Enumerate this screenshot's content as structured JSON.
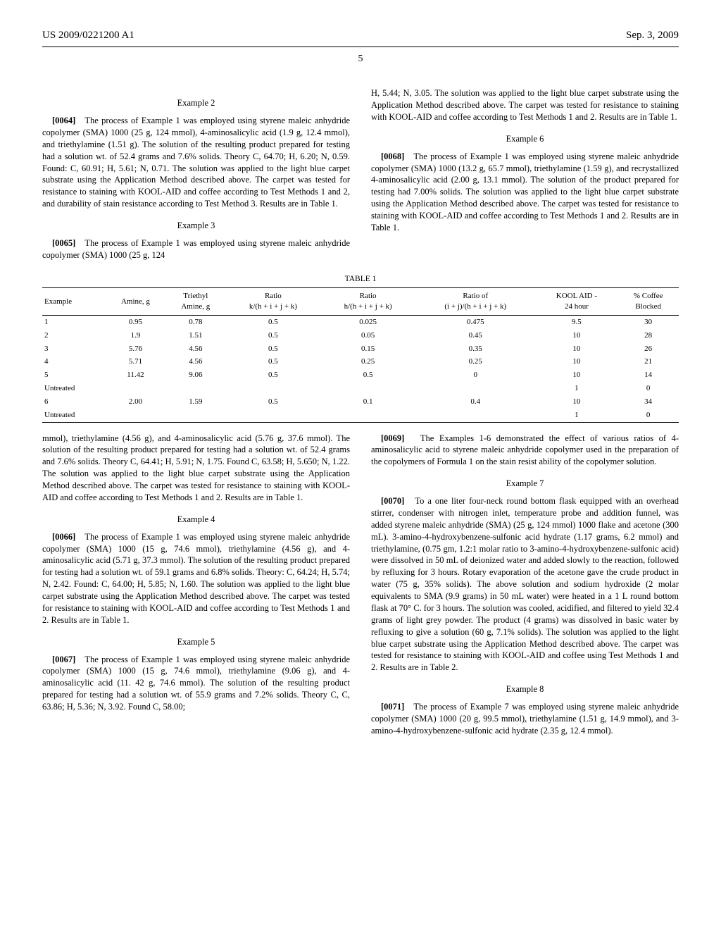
{
  "header": {
    "pub_id": "US 2009/0221200 A1",
    "pub_date": "Sep. 3, 2009",
    "page_number": "5"
  },
  "examples": {
    "ex2": {
      "title": "Example 2",
      "para_num": "[0064]",
      "text": "The process of Example 1 was employed using styrene maleic anhydride copolymer (SMA) 1000 (25 g, 124 mmol), 4-aminosalicylic acid (1.9 g, 12.4 mmol), and triethylamine (1.51 g). The solution of the resulting product prepared for testing had a solution wt. of 52.4 grams and 7.6% solids. Theory C, 64.70; H, 6.20; N, 0.59. Found: C, 60.91; H, 5.61; N, 0.71. The solution was applied to the light blue carpet substrate using the Application Method described above. The carpet was tested for resistance to staining with KOOL-AID and coffee according to Test Methods 1 and 2, and durability of stain resistance according to Test Method 3. Results are in Table 1."
    },
    "ex3": {
      "title": "Example 3",
      "para_num": "[0065]",
      "lead": "The process of Example 1 was employed using styrene maleic anhydride copolymer (SMA) 1000 (25 g, 124",
      "cont": "mmol), triethylamine (4.56 g), and 4-aminosalicylic acid (5.76 g, 37.6 mmol). The solution of the resulting product prepared for testing had a solution wt. of 52.4 grams and 7.6% solids. Theory C, 64.41; H, 5.91; N, 1.75. Found C, 63.58; H, 5.650; N, 1.22. The solution was applied to the light blue carpet substrate using the Application Method described above. The carpet was tested for resistance to staining with KOOL-AID and coffee according to Test Methods 1 and 2. Results are in Table 1."
    },
    "ex4": {
      "title": "Example 4",
      "para_num": "[0066]",
      "text": "The process of Example 1 was employed using styrene maleic anhydride copolymer (SMA) 1000 (15 g, 74.6 mmol), triethylamine (4.56 g), and 4-aminosalicylic acid (5.71 g, 37.3 mmol). The solution of the resulting product prepared for testing had a solution wt. of 59.1 grams and 6.8% solids. Theory: C, 64.24; H, 5.74; N, 2.42. Found: C, 64.00; H, 5.85; N, 1.60. The solution was applied to the light blue carpet substrate using the Application Method described above. The carpet was tested for resistance to staining with KOOL-AID and coffee according to Test Methods 1 and 2. Results are in Table 1."
    },
    "ex5": {
      "title": "Example 5",
      "para_num": "[0067]",
      "text": "The process of Example 1 was employed using styrene maleic anhydride copolymer (SMA) 1000 (15 g, 74.6 mmol), triethylamine (9.06 g), and 4-aminosalicylic acid (11. 42 g, 74.6 mmol). The solution of the resulting product prepared for testing had a solution wt. of 55.9 grams and 7.2% solids. Theory C, C, 63.86; H, 5.36; N, 3.92. Found C, 58.00;"
    },
    "ex5b": {
      "text": "H, 5.44; N, 3.05. The solution was applied to the light blue carpet substrate using the Application Method described above. The carpet was tested for resistance to staining with KOOL-AID and coffee according to Test Methods 1 and 2. Results are in Table 1."
    },
    "ex6": {
      "title": "Example 6",
      "para_num": "[0068]",
      "text": "The process of Example 1 was employed using styrene maleic anhydride copolymer (SMA) 1000 (13.2 g, 65.7 mmol), triethylamine (1.59 g), and recrystallized 4-aminosalicylic acid (2.00 g, 13.1 mmol). The solution of the product prepared for testing had 7.00% solids. The solution was applied to the light blue carpet substrate using the Application Method described above. The carpet was tested for resistance to staining with KOOL-AID and coffee according to Test Methods 1 and 2. Results are in Table 1."
    },
    "concl": {
      "para_num": "[0069]",
      "text": "The Examples 1-6 demonstrated the effect of various ratios of 4-aminosalicylic acid to styrene maleic anhydride copolymer used in the preparation of the copolymers of Formula 1 on the stain resist ability of the copolymer solution."
    },
    "ex7": {
      "title": "Example 7",
      "para_num": "[0070]",
      "text": "To a one liter four-neck round bottom flask equipped with an overhead stirrer, condenser with nitrogen inlet, temperature probe and addition funnel, was added styrene maleic anhydride (SMA) (25 g, 124 mmol) 1000 flake and acetone (300 mL). 3-amino-4-hydroxybenzene-sulfonic acid hydrate (1.17 grams, 6.2 mmol) and triethylamine, (0.75 gm, 1.2:1 molar ratio to 3-amino-4-hydroxybenzene-sulfonic acid) were dissolved in 50 mL of deionized water and added slowly to the reaction, followed by refluxing for 3 hours. Rotary evaporation of the acetone gave the crude product in water (75 g, 35% solids). The above solution and sodium hydroxide (2 molar equivalents to SMA (9.9 grams) in 50 mL water) were heated in a 1 L round bottom flask at 70° C. for 3 hours. The solution was cooled, acidified, and filtered to yield 32.4 grams of light grey powder. The product (4 grams) was dissolved in basic water by refluxing to give a solution (60 g, 7.1% solids). The solution was applied to the light blue carpet substrate using the Application Method described above. The carpet was tested for resistance to staining with KOOL-AID and coffee using Test Methods 1 and 2. Results are in Table 2."
    },
    "ex8": {
      "title": "Example 8",
      "para_num": "[0071]",
      "text": "The process of Example 7 was employed using styrene maleic anhydride copolymer (SMA) 1000 (20 g, 99.5 mmol), triethylamine (1.51 g, 14.9 mmol), and 3-amino-4-hydroxybenzene-sulfonic acid hydrate (2.35 g, 12.4 mmol)."
    }
  },
  "table1": {
    "title": "TABLE 1",
    "headers": [
      "Example",
      "Amine, g",
      "Triethyl\nAmine, g",
      "Ratio\nk/(h + i + j + k)",
      "Ratio\nh/(h + i + j + k)",
      "Ratio of\n(i + j)/(h + i + j + k)",
      "KOOL AID -\n24 hour",
      "% Coffee\nBlocked"
    ],
    "rows": [
      [
        "1",
        "0.95",
        "0.78",
        "0.5",
        "0.025",
        "0.475",
        "9.5",
        "30"
      ],
      [
        "2",
        "1.9",
        "1.51",
        "0.5",
        "0.05",
        "0.45",
        "10",
        "28"
      ],
      [
        "3",
        "5.76",
        "4.56",
        "0.5",
        "0.15",
        "0.35",
        "10",
        "26"
      ],
      [
        "4",
        "5.71",
        "4.56",
        "0.5",
        "0.25",
        "0.25",
        "10",
        "21"
      ],
      [
        "5",
        "11.42",
        "9.06",
        "0.5",
        "0.5",
        "0",
        "10",
        "14"
      ],
      [
        "Untreated",
        "",
        "",
        "",
        "",
        "",
        "1",
        "0"
      ],
      [
        "6",
        "2.00",
        "1.59",
        "0.5",
        "0.1",
        "0.4",
        "10",
        "34"
      ],
      [
        "Untreated",
        "",
        "",
        "",
        "",
        "",
        "1",
        "0"
      ]
    ]
  }
}
